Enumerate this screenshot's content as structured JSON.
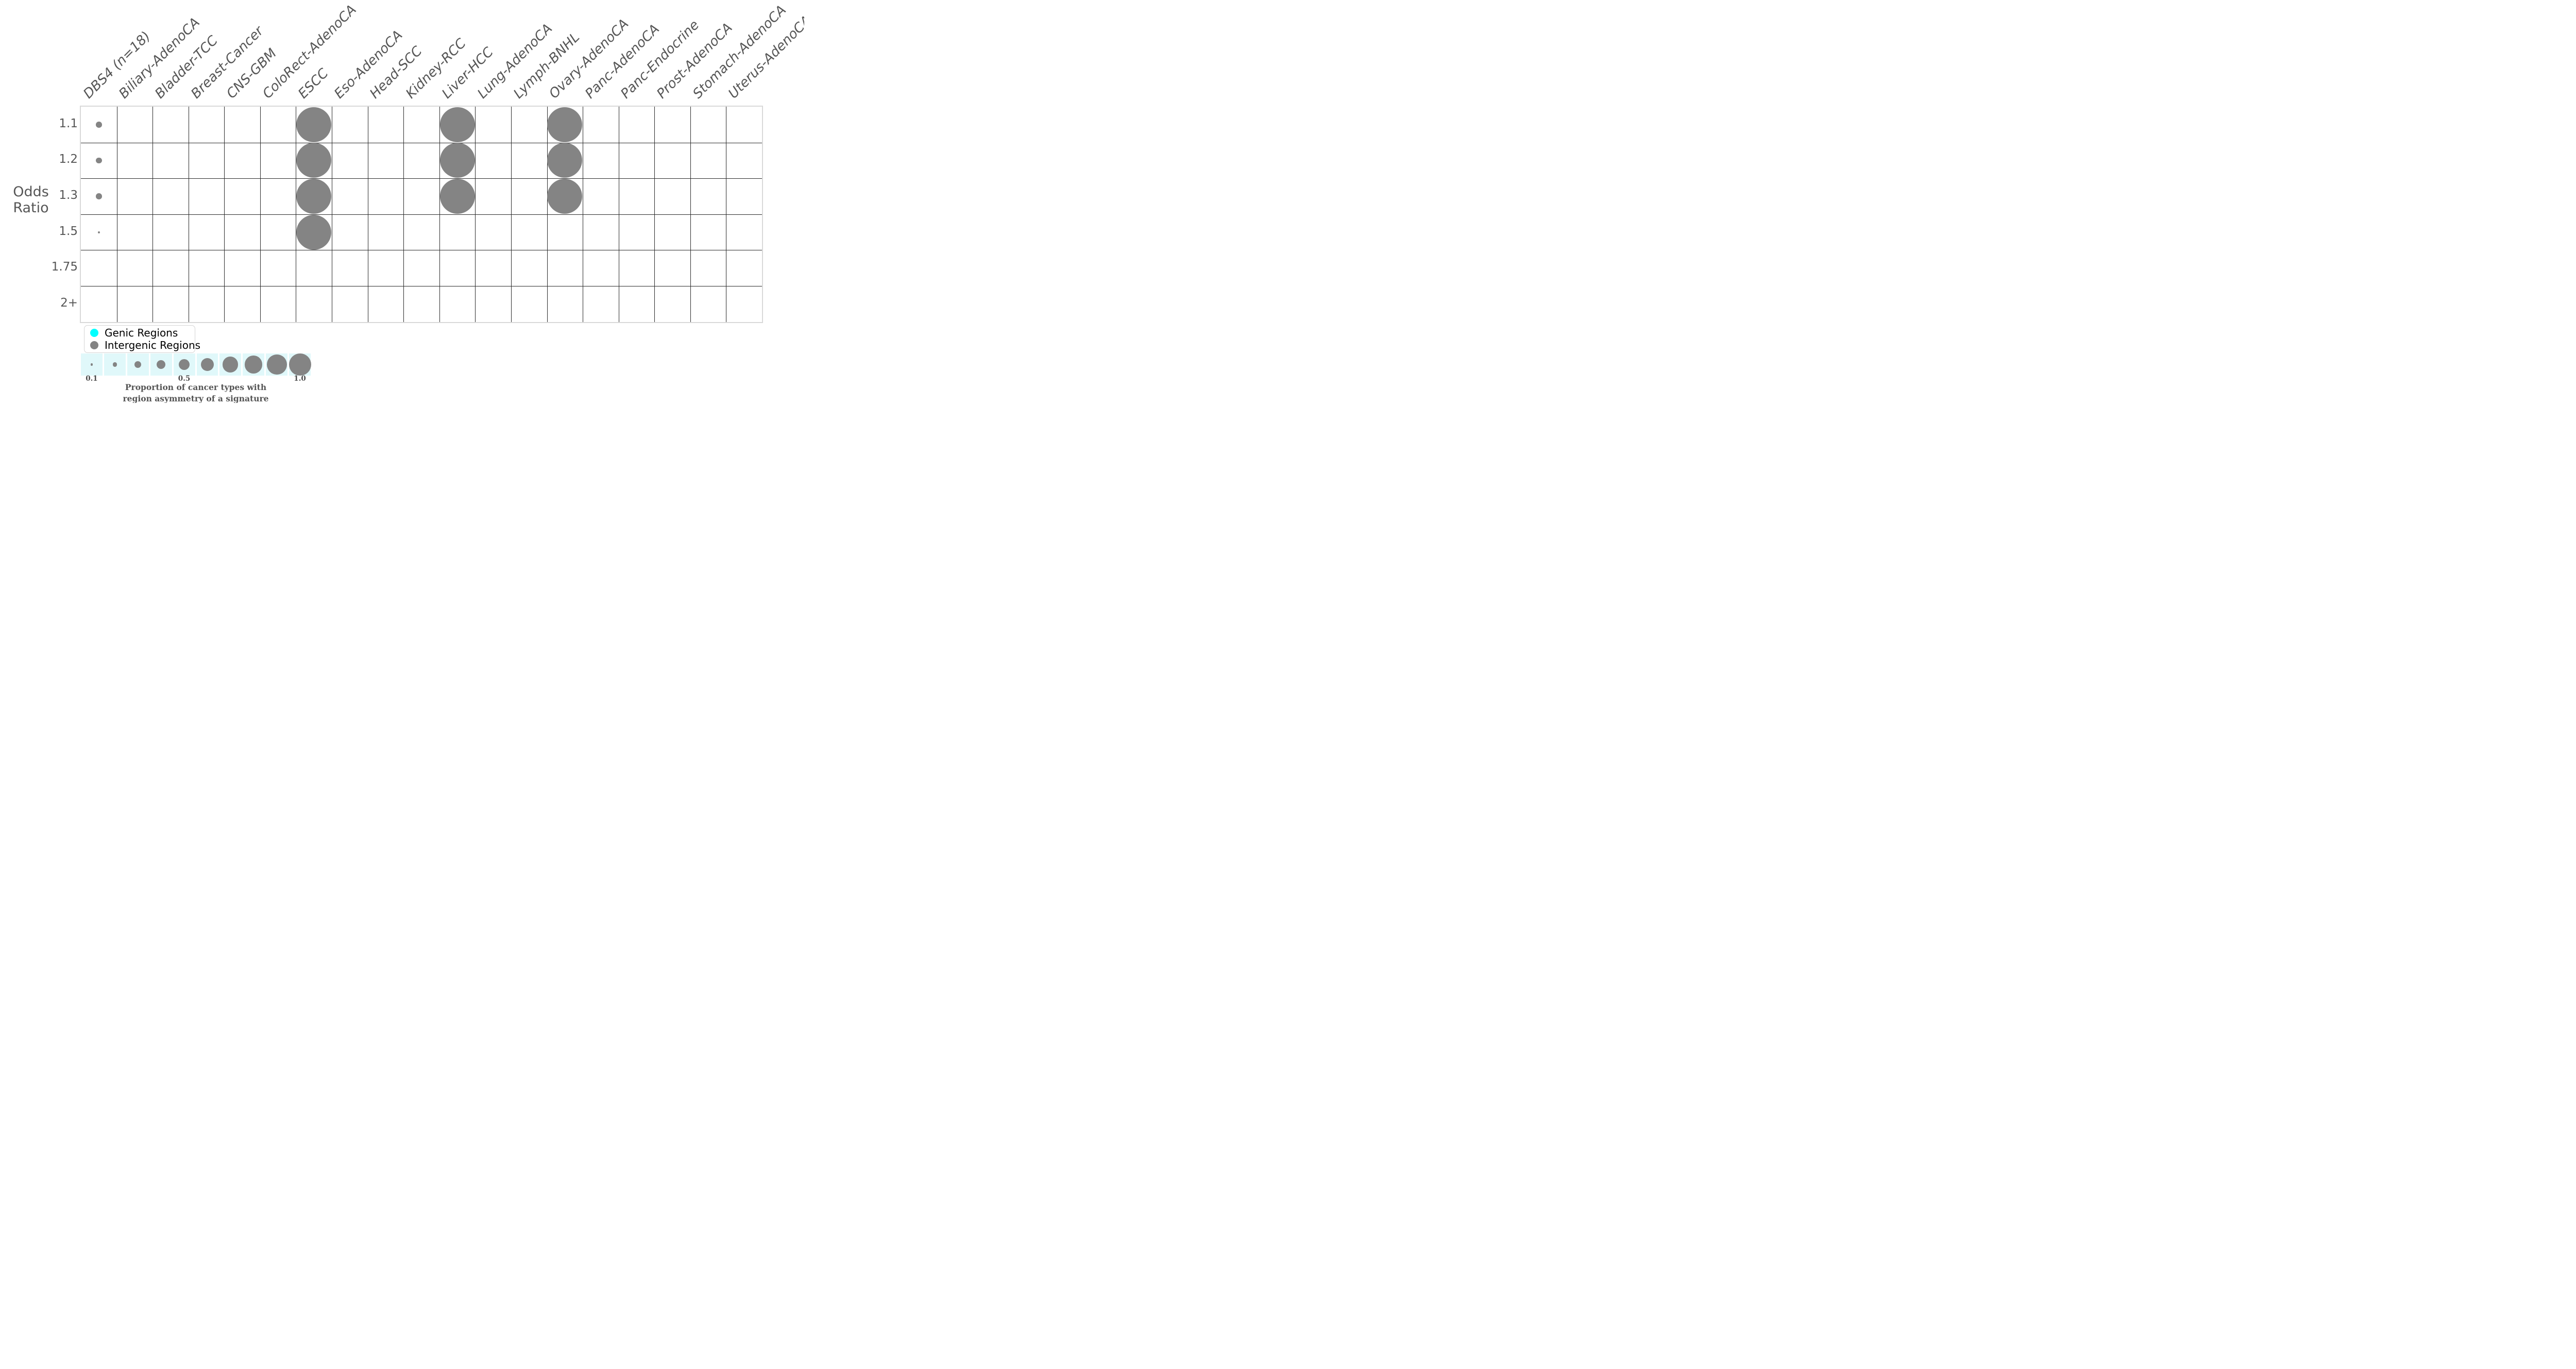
{
  "chart_data": {
    "type": "scatter",
    "subtype": "bubble-matrix",
    "signature": "DBS4",
    "xlabel": "",
    "ylabel_line1": "Odds",
    "ylabel_line2": "Ratio",
    "x_categories": [
      "DBS4 (n=18)",
      "Biliary-AdenoCA",
      "Bladder-TCC",
      "Breast-Cancer",
      "CNS-GBM",
      "ColoRect-AdenoCA",
      "ESCC",
      "Eso-AdenoCA",
      "Head-SCC",
      "Kidney-RCC",
      "Liver-HCC",
      "Lung-AdenoCA",
      "Lymph-BNHL",
      "Ovary-AdenoCA",
      "Panc-AdenoCA",
      "Panc-Endocrine",
      "Prost-AdenoCA",
      "Stomach-AdenoCA",
      "Uterus-AdenoCA"
    ],
    "y_categories": [
      "1.1",
      "1.2",
      "1.3",
      "1.5",
      "1.75",
      "2+"
    ],
    "grid": true,
    "series": [
      {
        "name": "Genic Regions",
        "color": "#00ffff",
        "points": []
      },
      {
        "name": "Intergenic Regions",
        "color": "#848484",
        "points": [
          {
            "x": "DBS4 (n=18)",
            "y": "1.1",
            "proportion": 0.17
          },
          {
            "x": "DBS4 (n=18)",
            "y": "1.2",
            "proportion": 0.17
          },
          {
            "x": "DBS4 (n=18)",
            "y": "1.3",
            "proportion": 0.17
          },
          {
            "x": "DBS4 (n=18)",
            "y": "1.5",
            "proportion": 0.06
          },
          {
            "x": "ESCC",
            "y": "1.1",
            "proportion": 1.0
          },
          {
            "x": "ESCC",
            "y": "1.2",
            "proportion": 1.0
          },
          {
            "x": "ESCC",
            "y": "1.3",
            "proportion": 1.0
          },
          {
            "x": "ESCC",
            "y": "1.5",
            "proportion": 1.0
          },
          {
            "x": "Liver-HCC",
            "y": "1.1",
            "proportion": 1.0
          },
          {
            "x": "Liver-HCC",
            "y": "1.2",
            "proportion": 1.0
          },
          {
            "x": "Liver-HCC",
            "y": "1.3",
            "proportion": 1.0
          },
          {
            "x": "Ovary-AdenoCA",
            "y": "1.1",
            "proportion": 1.0
          },
          {
            "x": "Ovary-AdenoCA",
            "y": "1.2",
            "proportion": 1.0
          },
          {
            "x": "Ovary-AdenoCA",
            "y": "1.3",
            "proportion": 1.0
          }
        ]
      }
    ],
    "legend": {
      "position": "bottom-left",
      "entries": [
        {
          "label": "Genic Regions",
          "color": "#00ffff"
        },
        {
          "label": "Intergenic Regions",
          "color": "#848484"
        }
      ]
    },
    "size_legend": {
      "values": [
        0.1,
        0.2,
        0.3,
        0.4,
        0.5,
        0.6,
        0.7,
        0.8,
        0.9,
        1.0
      ],
      "ticks": [
        {
          "label": "0.1",
          "cell": 0
        },
        {
          "label": "0.5",
          "cell": 4
        },
        {
          "label": "1.0",
          "cell": 9
        }
      ],
      "caption_line1": "Proportion of cancer types with",
      "caption_line2": "region asymmetry of a signature",
      "strip_background": "#e0f8fa",
      "bubble_color": "#848484"
    },
    "colors": {
      "grid_line": "#2b2b2b",
      "grid_border": "#d9d9d9",
      "axis_text": "#565656",
      "background": "#ffffff"
    }
  }
}
